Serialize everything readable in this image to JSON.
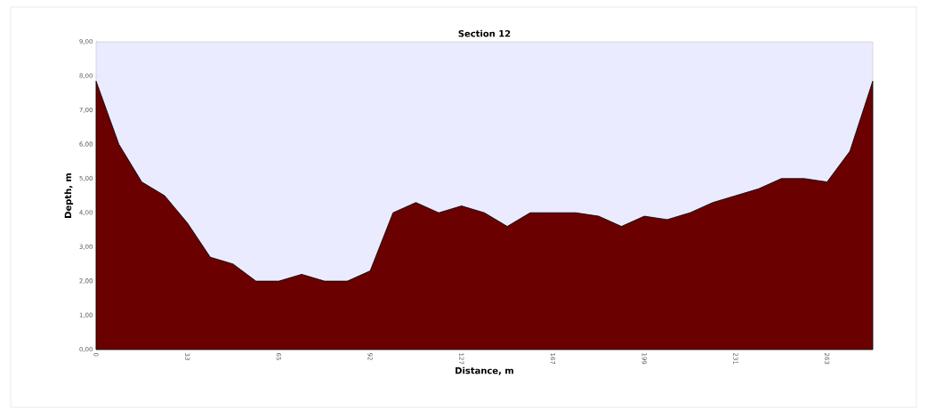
{
  "chart_data": {
    "type": "area",
    "title": "Section 12",
    "xlabel": "Distance, m",
    "ylabel": "Depth, m",
    "categories": [
      "0",
      null,
      null,
      null,
      "33",
      null,
      null,
      null,
      "65",
      null,
      null,
      null,
      "92",
      null,
      null,
      null,
      "127",
      null,
      null,
      null,
      "167",
      null,
      null,
      null,
      "199",
      null,
      null,
      null,
      "231",
      null,
      null,
      null,
      "263",
      null,
      null
    ],
    "values": [
      7.85,
      6.0,
      4.9,
      4.5,
      3.7,
      2.7,
      2.5,
      2.0,
      2.0,
      2.2,
      2.0,
      2.0,
      2.3,
      4.0,
      4.3,
      4.0,
      4.2,
      4.0,
      3.6,
      4.0,
      4.0,
      4.0,
      3.9,
      3.6,
      3.9,
      3.8,
      4.0,
      4.3,
      4.5,
      4.7,
      5.0,
      5.0,
      4.9,
      5.8,
      7.85
    ],
    "color": "#6b0000",
    "ylim": [
      0,
      9
    ],
    "yticks": [
      {
        "value": 0,
        "label": "0,00"
      },
      {
        "value": 1,
        "label": "1,00"
      },
      {
        "value": 2,
        "label": "2,00"
      },
      {
        "value": 3,
        "label": "3,00"
      },
      {
        "value": 4,
        "label": "4,00"
      },
      {
        "value": 5,
        "label": "5,00"
      },
      {
        "value": 6,
        "label": "6,00"
      },
      {
        "value": 7,
        "label": "7,00"
      },
      {
        "value": 8,
        "label": "8,00"
      },
      {
        "value": 9,
        "label": "9,00"
      }
    ]
  }
}
